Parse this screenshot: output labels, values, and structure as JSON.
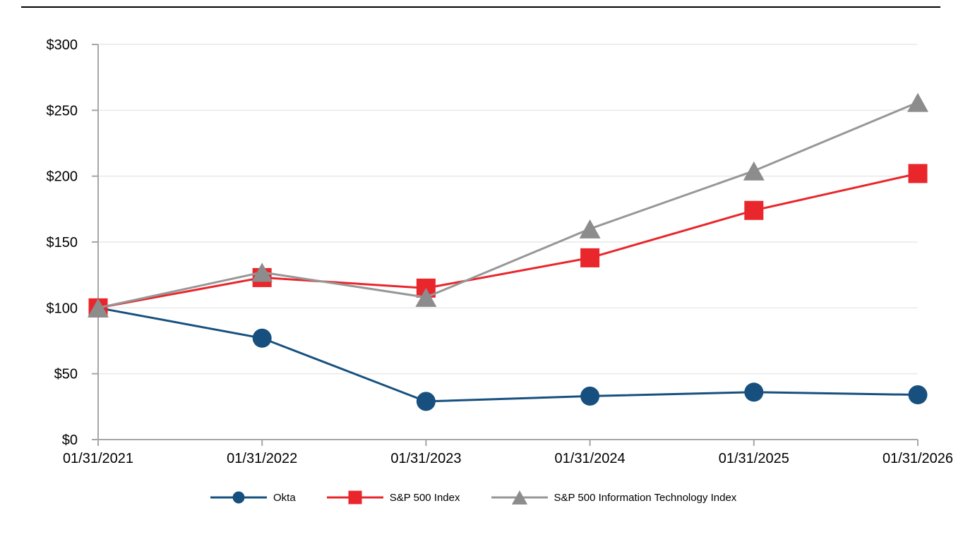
{
  "chart_data": {
    "type": "line",
    "title": "",
    "categories": [
      "01/31/2021",
      "01/31/2022",
      "01/31/2023",
      "01/31/2024",
      "01/31/2025",
      "01/31/2026"
    ],
    "series": [
      {
        "name": "Okta",
        "marker": "circle",
        "color": "#17507E",
        "values": [
          100,
          77,
          29,
          33,
          36,
          34
        ]
      },
      {
        "name": "S&P 500 Index",
        "marker": "square",
        "color": "#E9262B",
        "values": [
          100,
          123,
          115,
          138,
          174,
          202
        ]
      },
      {
        "name": "S&P 500 Information Technology Index",
        "marker": "triangle",
        "color": "#8C8C8C",
        "line_color": "#979797",
        "values": [
          100,
          127,
          108,
          160,
          204,
          256
        ]
      }
    ],
    "ylim": [
      0,
      300
    ],
    "y_tick_step": 50,
    "y_tick_labels": [
      "$0",
      "$50",
      "$100",
      "$150",
      "$200",
      "$250",
      "$300"
    ],
    "grid": "horizontal",
    "legend_position": "bottom",
    "colors": {
      "gridline": "#E9E9E9",
      "axis": "#A6A6A6",
      "text": "#000000",
      "background": "#FFFFFF"
    }
  }
}
